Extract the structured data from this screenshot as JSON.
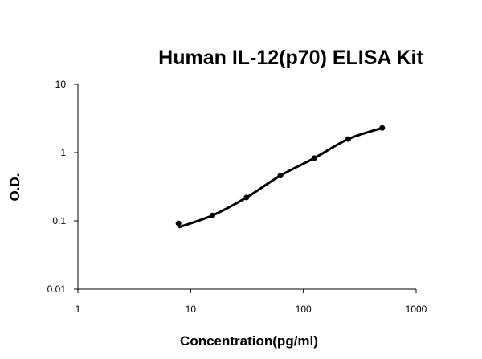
{
  "chart_data": {
    "type": "scatter",
    "title": "Human IL-12(p70) ELISA Kit",
    "xlabel": "Concentration(pg/ml)",
    "ylabel": "O.D.",
    "x_scale": "log",
    "y_scale": "log",
    "xlim": [
      1,
      1000
    ],
    "ylim": [
      0.01,
      10
    ],
    "x_ticks": [
      "1",
      "10",
      "100",
      "1000"
    ],
    "y_ticks": [
      "0.01",
      "0.1",
      "1",
      "10"
    ],
    "grid": false,
    "legend": "none",
    "fit_curve": true,
    "color": "#000000",
    "x": [
      7.8,
      15.6,
      31.25,
      62.5,
      125,
      250,
      500
    ],
    "y": [
      0.092,
      0.12,
      0.22,
      0.46,
      0.83,
      1.58,
      2.3
    ]
  }
}
